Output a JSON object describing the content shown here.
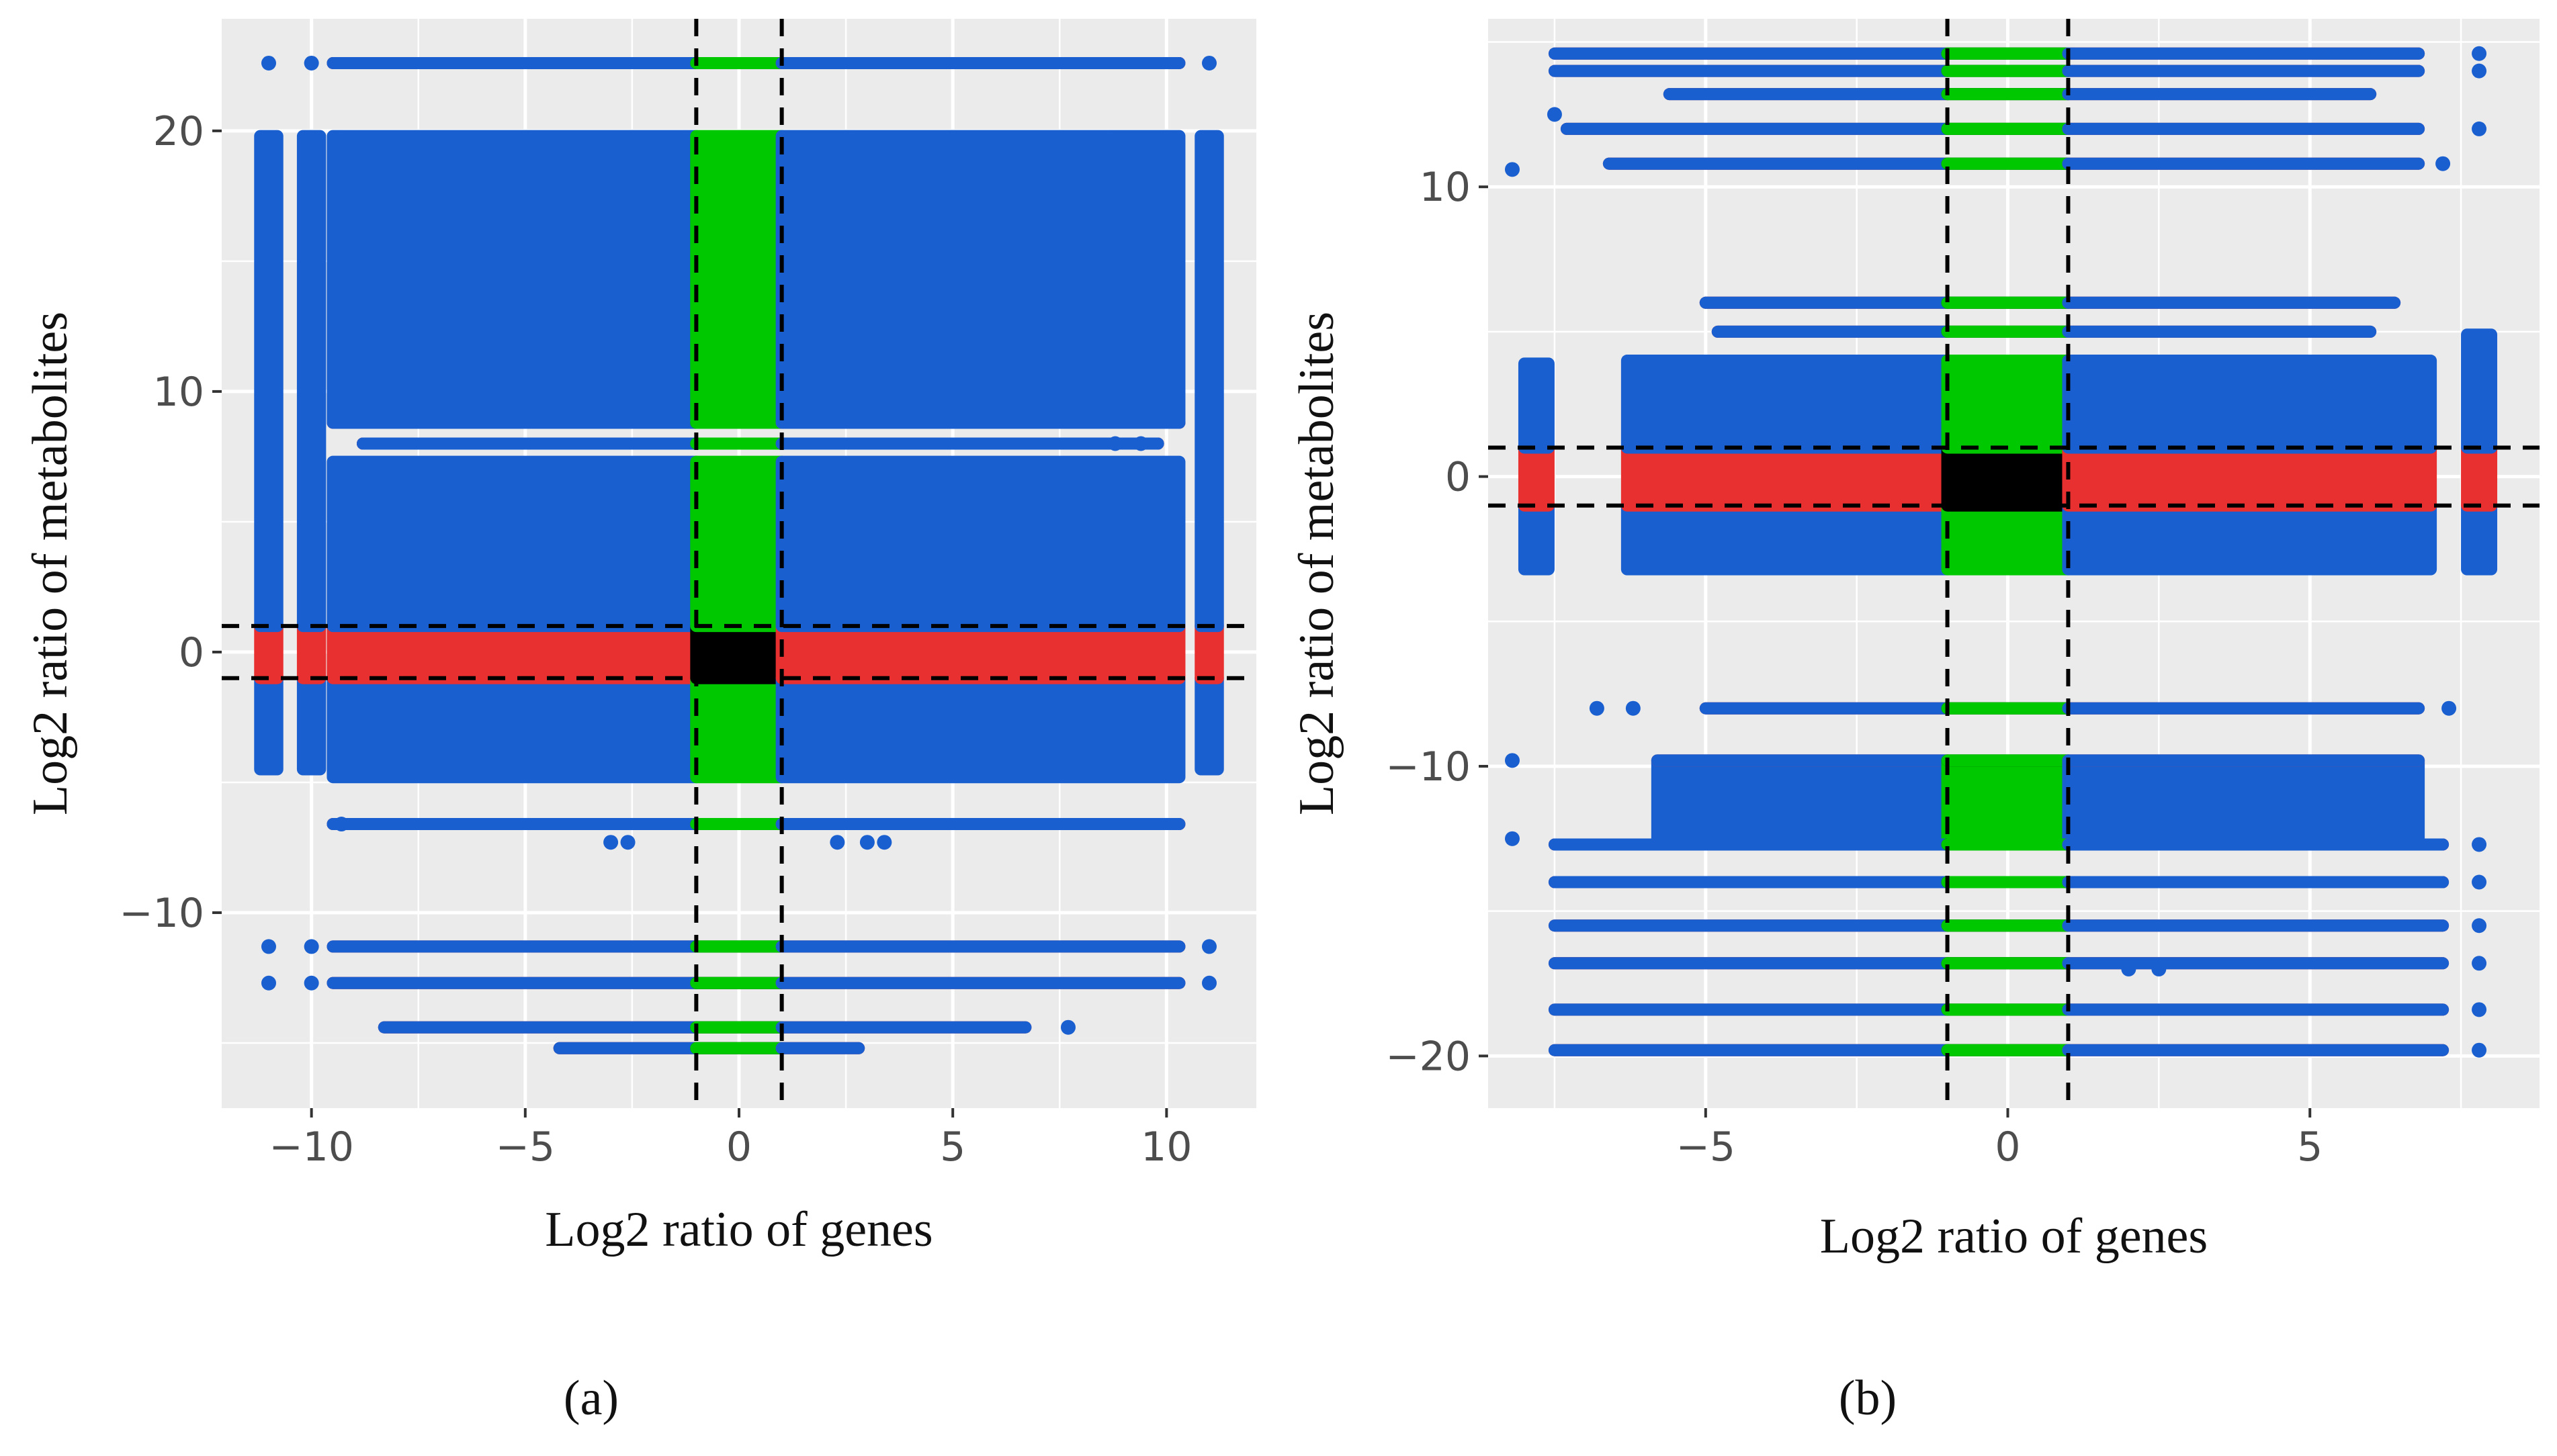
{
  "figure": {
    "panels": [
      {
        "caption": "(a)",
        "chart_data": {
          "type": "scatter",
          "xlabel": "Log2 ratio of genes",
          "ylabel": "Log2 ratio of metabolites",
          "xlim": [
            -12.1,
            12.1
          ],
          "ylim": [
            -17.5,
            24.3
          ],
          "xticks": [
            -10,
            -5,
            0,
            5,
            10
          ],
          "xtick_labels": [
            "−10",
            "−5",
            "0",
            "5",
            "10"
          ],
          "yticks": [
            -10,
            0,
            10,
            20
          ],
          "ytick_labels": [
            "−10",
            "0",
            "10",
            "20"
          ],
          "grid": true,
          "legend": "none",
          "thresholds": {
            "x": [
              -1,
              1
            ],
            "y": [
              -1,
              1
            ]
          },
          "colors": {
            "not_significant_both": "#000000",
            "significant_genes": "#e83030",
            "significant_metabolites": "#00c800",
            "significant_both": "#1a5fd0",
            "panel_background": "#ebebeb"
          },
          "blocks": [
            {
              "x": [
                -9.5,
                10.3
              ],
              "y": [
                8.8,
                19.8
              ]
            },
            {
              "x": [
                -9.5,
                10.3
              ],
              "y": [
                -4.8,
                7.3
              ]
            },
            {
              "x": [
                -11.2,
                -10.8
              ],
              "y": [
                -4.5,
                19.8
              ]
            },
            {
              "x": [
                -10.2,
                -9.8
              ],
              "y": [
                -4.5,
                19.8
              ]
            },
            {
              "x": [
                10.8,
                11.2
              ],
              "y": [
                -4.5,
                19.8
              ]
            }
          ],
          "bands": [
            {
              "y": 22.6,
              "x": [
                -9.5,
                10.3
              ]
            },
            {
              "y": 8.0,
              "x": [
                -8.8,
                9.8
              ]
            },
            {
              "y": -6.6,
              "x": [
                -9.5,
                10.3
              ]
            },
            {
              "y": -11.3,
              "x": [
                -9.5,
                10.3
              ]
            },
            {
              "y": -12.7,
              "x": [
                -9.5,
                10.3
              ]
            },
            {
              "y": -14.4,
              "x": [
                -8.3,
                6.7
              ]
            },
            {
              "y": -15.2,
              "x": [
                -4.2,
                2.8
              ]
            }
          ],
          "points": [
            {
              "x": -11,
              "y": 22.6
            },
            {
              "x": -10,
              "y": 22.6
            },
            {
              "x": 11,
              "y": 22.6
            },
            {
              "x": -11,
              "y": -11.3
            },
            {
              "x": -10,
              "y": -11.3
            },
            {
              "x": 11,
              "y": -11.3
            },
            {
              "x": -11,
              "y": -12.7
            },
            {
              "x": -10,
              "y": -12.7
            },
            {
              "x": 11,
              "y": -12.7
            },
            {
              "x": -9.3,
              "y": -6.6
            },
            {
              "x": 7.7,
              "y": -14.4
            },
            {
              "x": -3.0,
              "y": -7.3
            },
            {
              "x": -2.6,
              "y": -7.3
            },
            {
              "x": 2.3,
              "y": -7.3
            },
            {
              "x": 3.0,
              "y": -7.3
            },
            {
              "x": 3.4,
              "y": -7.3
            },
            {
              "x": 8.8,
              "y": 8.0
            },
            {
              "x": 9.4,
              "y": 8.0
            },
            {
              "x": 6.8,
              "y": -3.9
            },
            {
              "x": 8.3,
              "y": -4.3
            }
          ]
        }
      },
      {
        "caption": "(b)",
        "chart_data": {
          "type": "scatter",
          "xlabel": "Log2 ratio of genes",
          "ylabel": "Log2 ratio of metabolites",
          "xlim": [
            -8.6,
            8.8
          ],
          "ylim": [
            -21.8,
            15.8
          ],
          "xticks": [
            -5,
            0,
            5
          ],
          "xtick_labels": [
            "−5",
            "0",
            "5"
          ],
          "yticks": [
            -20,
            -10,
            0,
            10
          ],
          "ytick_labels": [
            "−20",
            "−10",
            "0",
            "10"
          ],
          "grid": true,
          "legend": "none",
          "thresholds": {
            "x": [
              -1,
              1
            ],
            "y": [
              -1,
              1
            ]
          },
          "colors": {
            "not_significant_both": "#000000",
            "significant_genes": "#e83030",
            "significant_metabolites": "#00c800",
            "significant_both": "#1a5fd0",
            "panel_background": "#ebebeb"
          },
          "blocks": [
            {
              "x": [
                -6.3,
                7.0
              ],
              "y": [
                -3.2,
                4.0
              ]
            },
            {
              "x": [
                -8.0,
                -7.6
              ],
              "y": [
                -3.2,
                3.9
              ]
            },
            {
              "x": [
                7.6,
                8.0
              ],
              "y": [
                -3.2,
                4.9
              ]
            },
            {
              "x": [
                -5.8,
                6.8
              ],
              "y": [
                -12.5,
                -9.8
              ]
            }
          ],
          "bands": [
            {
              "y": 14.6,
              "x": [
                -7.5,
                6.8
              ]
            },
            {
              "y": 14.0,
              "x": [
                -7.5,
                6.8
              ]
            },
            {
              "y": 13.2,
              "x": [
                -5.6,
                6.0
              ]
            },
            {
              "y": 12.0,
              "x": [
                -7.3,
                6.8
              ]
            },
            {
              "y": 10.8,
              "x": [
                -6.6,
                6.8
              ]
            },
            {
              "y": 6.0,
              "x": [
                -5.0,
                6.4
              ]
            },
            {
              "y": 5.0,
              "x": [
                -4.8,
                6.0
              ]
            },
            {
              "y": -8.0,
              "x": [
                -5.0,
                6.8
              ]
            },
            {
              "y": -12.7,
              "x": [
                -7.5,
                7.2
              ]
            },
            {
              "y": -14.0,
              "x": [
                -7.5,
                7.2
              ]
            },
            {
              "y": -15.5,
              "x": [
                -7.5,
                7.2
              ]
            },
            {
              "y": -16.8,
              "x": [
                -7.5,
                7.2
              ]
            },
            {
              "y": -18.4,
              "x": [
                -7.5,
                7.2
              ]
            },
            {
              "y": -19.8,
              "x": [
                -7.5,
                7.2
              ]
            }
          ],
          "points": [
            {
              "x": -8.2,
              "y": 10.6
            },
            {
              "x": -7.5,
              "y": 12.5
            },
            {
              "x": 7.8,
              "y": 14.6
            },
            {
              "x": 7.8,
              "y": 14.0
            },
            {
              "x": 7.8,
              "y": 12.0
            },
            {
              "x": 7.2,
              "y": 10.8
            },
            {
              "x": -8.2,
              "y": -9.8
            },
            {
              "x": -8.2,
              "y": -12.5
            },
            {
              "x": -6.8,
              "y": -8.0
            },
            {
              "x": -6.2,
              "y": -8.0
            },
            {
              "x": 7.3,
              "y": -8.0
            },
            {
              "x": 7.8,
              "y": -12.7
            },
            {
              "x": 7.8,
              "y": -14.0
            },
            {
              "x": 7.8,
              "y": -15.5
            },
            {
              "x": 7.8,
              "y": -16.8
            },
            {
              "x": 7.8,
              "y": -18.4
            },
            {
              "x": 7.8,
              "y": -19.8
            },
            {
              "x": 2.0,
              "y": -17.0
            },
            {
              "x": 2.5,
              "y": -17.0
            }
          ]
        }
      }
    ]
  }
}
